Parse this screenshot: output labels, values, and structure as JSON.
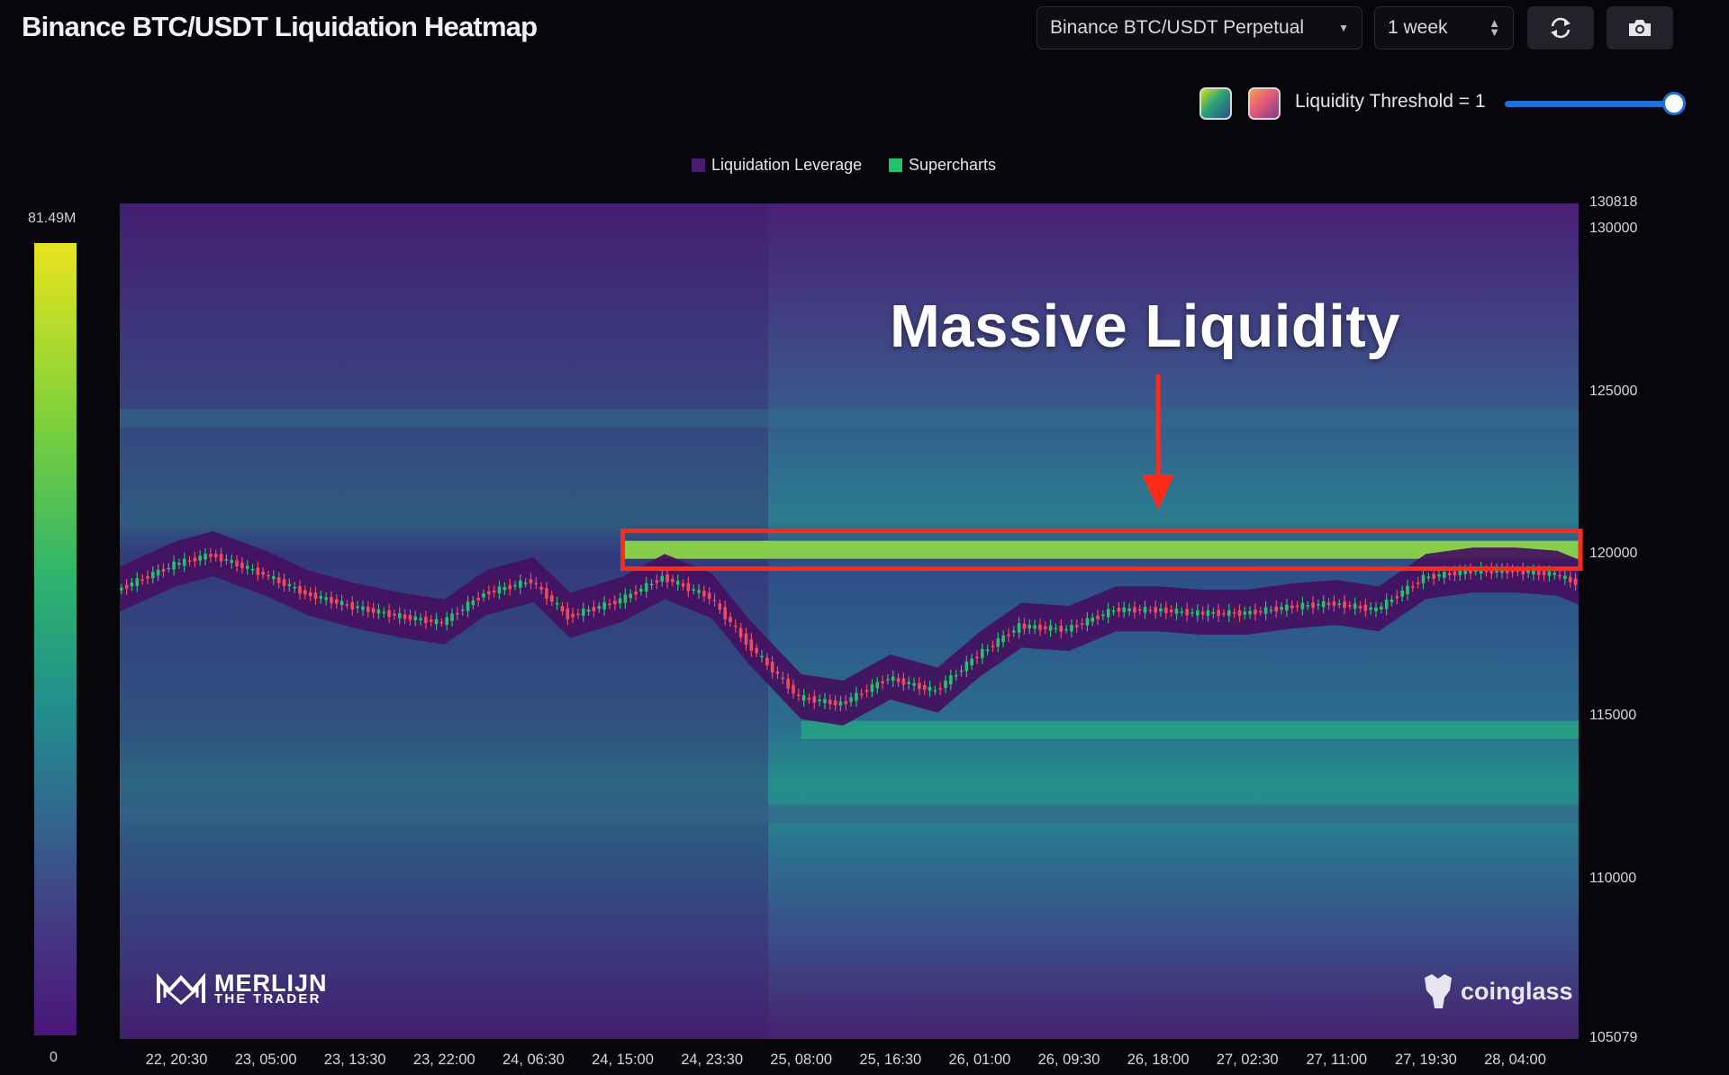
{
  "header": {
    "title": "Binance BTC/USDT Liquidation Heatmap",
    "pair_select": "Binance BTC/USDT Perpetual",
    "range_select": "1 week",
    "refresh_icon": "refresh-icon",
    "camera_icon": "camera-icon"
  },
  "threshold": {
    "label": "Liquidity Threshold = 1",
    "value": 1,
    "slider_fraction": 1.0,
    "palette_icons": [
      "palette-green-swatch",
      "palette-pink-swatch"
    ]
  },
  "legend": {
    "items": [
      {
        "label": "Liquidation Leverage",
        "color": "#4a1a6e"
      },
      {
        "label": "Supercharts",
        "color": "#22c36b"
      }
    ]
  },
  "colorbar": {
    "max_label": "81.49M",
    "min_label": "0"
  },
  "annotation": {
    "text": "Massive Liquidity",
    "highlight_color": "#ff2a1a"
  },
  "watermarks": {
    "left_line1": "MERLIJN",
    "left_line2": "THE TRADER",
    "right": "coinglass"
  },
  "chart_data": {
    "type": "heatmap",
    "title": "Binance BTC/USDT Liquidation Heatmap",
    "ylim": [
      105079,
      130818
    ],
    "y_ticks": [
      130818,
      130000,
      125000,
      120000,
      115000,
      110000,
      105079
    ],
    "x_ticks": [
      "22, 20:30",
      "23, 05:00",
      "23, 13:30",
      "23, 22:00",
      "24, 06:30",
      "24, 15:00",
      "24, 23:30",
      "25, 08:00",
      "25, 16:30",
      "26, 01:00",
      "26, 09:30",
      "26, 18:00",
      "27, 02:30",
      "27, 11:00",
      "27, 19:30",
      "28, 04:00"
    ],
    "colorbar_range": [
      0,
      81490000
    ],
    "liquidity_bands": [
      {
        "price": 120150,
        "start": "24, 15:00",
        "end": "28, 11:00",
        "intensity": 0.85
      },
      {
        "price": 114600,
        "start": "25, 08:00",
        "end": "28, 11:00",
        "intensity": 0.55
      },
      {
        "price": 124200,
        "start": "22, 15:00",
        "end": "28, 11:00",
        "intensity": 0.35
      },
      {
        "price": 112000,
        "start": "22, 15:00",
        "end": "28, 11:00",
        "intensity": 0.3
      }
    ],
    "price_series": {
      "name": "BTC/USDT",
      "x": [
        "22, 15:00",
        "22, 20:30",
        "23, 00:00",
        "23, 05:00",
        "23, 09:00",
        "23, 13:30",
        "23, 18:00",
        "23, 22:00",
        "24, 02:00",
        "24, 06:30",
        "24, 10:00",
        "24, 15:00",
        "24, 19:00",
        "24, 23:30",
        "25, 03:00",
        "25, 08:00",
        "25, 12:00",
        "25, 16:30",
        "25, 21:00",
        "26, 01:00",
        "26, 05:00",
        "26, 09:30",
        "26, 14:00",
        "26, 18:00",
        "26, 22:00",
        "27, 02:30",
        "27, 07:00",
        "27, 11:00",
        "27, 15:00",
        "27, 19:30",
        "28, 00:00",
        "28, 04:00",
        "28, 08:00",
        "28, 11:00"
      ],
      "y": [
        118900,
        119700,
        120000,
        119400,
        118800,
        118400,
        118100,
        117900,
        118800,
        119200,
        118100,
        118600,
        119300,
        118700,
        117300,
        115600,
        115400,
        116200,
        115800,
        116900,
        117800,
        117700,
        118300,
        118300,
        118200,
        118200,
        118400,
        118500,
        118300,
        119300,
        119500,
        119500,
        119400,
        119000
      ]
    }
  }
}
